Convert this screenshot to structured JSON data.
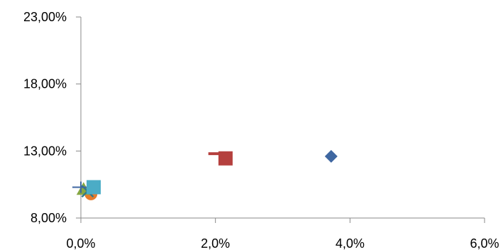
{
  "chart_data": {
    "type": "scatter",
    "title": "",
    "xlabel": "",
    "ylabel": "",
    "xlim": [
      0,
      6
    ],
    "ylim": [
      8,
      23
    ],
    "x_ticks": [
      {
        "value": 0,
        "label": "0,0%"
      },
      {
        "value": 2,
        "label": "2,0%"
      },
      {
        "value": 4,
        "label": "4,0%"
      },
      {
        "value": 6,
        "label": "6,0%"
      }
    ],
    "y_ticks": [
      {
        "value": 8,
        "label": "8,00%"
      },
      {
        "value": 13,
        "label": "13,00%"
      },
      {
        "value": 18,
        "label": "18,00%"
      },
      {
        "value": 23,
        "label": "23,00%"
      }
    ],
    "grid": false,
    "legend": "none",
    "series": [
      {
        "marker": "diamond",
        "color": "#3f67a1",
        "points": [
          {
            "x": 3.72,
            "y": 12.6
          }
        ]
      },
      {
        "marker": "square",
        "color": "#b5403e",
        "points": [
          {
            "x": 2.15,
            "y": 12.45
          }
        ]
      },
      {
        "marker": "dash",
        "color": "#b5403e",
        "points": [
          {
            "x": 2.0,
            "y": 12.8
          }
        ]
      },
      {
        "marker": "circle",
        "color": "#e67b2c",
        "points": [
          {
            "x": 0.15,
            "y": 9.8
          }
        ]
      },
      {
        "marker": "triangle",
        "color": "#86a744",
        "points": [
          {
            "x": 0.04,
            "y": 10.15
          }
        ]
      },
      {
        "marker": "x",
        "color": "#2f7a8c",
        "points": [
          {
            "x": 0.1,
            "y": 10.0
          }
        ]
      },
      {
        "marker": "plus",
        "color": "#3f67a1",
        "points": [
          {
            "x": 0.0,
            "y": 10.3
          }
        ]
      },
      {
        "marker": "square",
        "color": "#4bacc6",
        "points": [
          {
            "x": 0.19,
            "y": 10.3
          }
        ]
      }
    ]
  }
}
